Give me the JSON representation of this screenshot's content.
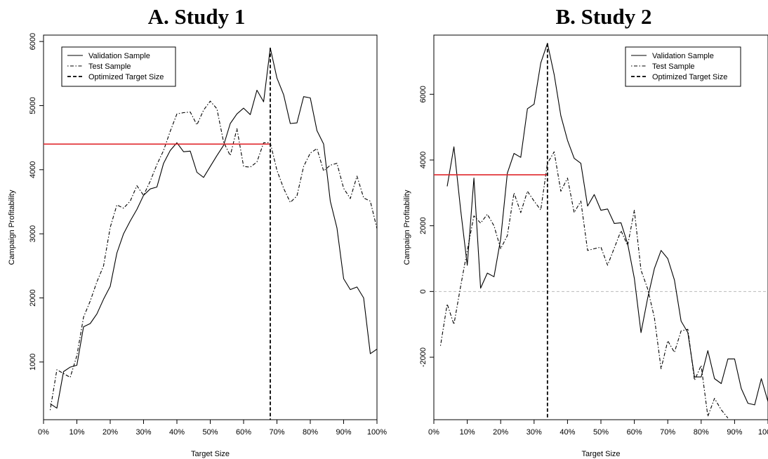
{
  "panels": {
    "a_title": "A. Study 1",
    "b_title": "B. Study 2"
  },
  "chart_data": [
    {
      "type": "line",
      "title": "A. Study 1",
      "xlabel": "Target Size",
      "ylabel": "Campaign Profitability",
      "xlim": [
        0,
        100
      ],
      "ylim": [
        100,
        6100
      ],
      "xticks": [
        0,
        10,
        20,
        30,
        40,
        50,
        60,
        70,
        80,
        90,
        100
      ],
      "xtick_labels": [
        "0%",
        "10%",
        "20%",
        "30%",
        "40%",
        "50%",
        "60%",
        "70%",
        "80%",
        "90%",
        "100%"
      ],
      "yticks": [
        1000,
        2000,
        3000,
        4000,
        5000,
        6000
      ],
      "ytick_labels": [
        "1000",
        "2000",
        "3000",
        "4000",
        "5000",
        "6000"
      ],
      "legend": {
        "position": "top-left",
        "entries": [
          "Validation Sample",
          "Test Sample",
          "Optimized Target Size"
        ]
      },
      "optimized_target_size": 68,
      "reference_level": 4400,
      "series": [
        {
          "name": "Validation Sample",
          "style": "solid",
          "x": [
            2,
            4,
            6,
            8,
            10,
            12,
            14,
            16,
            18,
            20,
            22,
            24,
            26,
            28,
            30,
            32,
            34,
            36,
            38,
            40,
            42,
            44,
            46,
            48,
            50,
            52,
            54,
            56,
            58,
            60,
            62,
            64,
            66,
            68,
            70,
            72,
            74,
            76,
            78,
            80,
            82,
            84,
            86,
            88,
            90,
            92,
            94,
            96,
            98,
            100
          ],
          "y": [
            350,
            280,
            850,
            920,
            950,
            1550,
            1600,
            1750,
            1980,
            2180,
            2700,
            3000,
            3200,
            3380,
            3600,
            3700,
            3730,
            4100,
            4300,
            4420,
            4280,
            4290,
            3960,
            3880,
            4050,
            4220,
            4380,
            4720,
            4870,
            4960,
            4860,
            5240,
            5060,
            5900,
            5430,
            5170,
            4720,
            4730,
            5140,
            5120,
            4610,
            4400,
            3510,
            3090,
            2300,
            2130,
            2170,
            2000,
            1130,
            1200
          ]
        },
        {
          "name": "Test Sample",
          "style": "dotdash",
          "x": [
            2,
            4,
            6,
            8,
            10,
            12,
            14,
            16,
            18,
            20,
            22,
            24,
            26,
            28,
            30,
            32,
            34,
            36,
            38,
            40,
            42,
            44,
            46,
            48,
            50,
            52,
            54,
            56,
            58,
            60,
            62,
            64,
            66,
            68,
            70,
            72,
            74,
            76,
            78,
            80,
            82,
            84,
            86,
            88,
            90,
            92,
            94,
            96,
            98,
            100
          ],
          "y": [
            250,
            880,
            820,
            760,
            1100,
            1700,
            1950,
            2250,
            2500,
            3100,
            3450,
            3400,
            3510,
            3750,
            3600,
            3820,
            4080,
            4300,
            4600,
            4870,
            4890,
            4900,
            4700,
            4930,
            5070,
            4950,
            4430,
            4220,
            4640,
            4050,
            4040,
            4120,
            4420,
            4420,
            3990,
            3710,
            3490,
            3590,
            4050,
            4260,
            4330,
            3980,
            4070,
            4100,
            3710,
            3550,
            3900,
            3560,
            3510,
            3080
          ]
        }
      ]
    },
    {
      "type": "line",
      "title": "B. Study 2",
      "xlabel": "Target Size",
      "ylabel": "Campaign Profitability",
      "xlim": [
        0,
        100
      ],
      "ylim": [
        -3900,
        7800
      ],
      "xticks": [
        0,
        10,
        20,
        30,
        40,
        50,
        60,
        70,
        80,
        90,
        100
      ],
      "xtick_labels": [
        "0%",
        "10%",
        "20%",
        "30%",
        "40%",
        "50%",
        "60%",
        "70%",
        "80%",
        "90%",
        "100%"
      ],
      "yticks": [
        -2000,
        0,
        2000,
        4000,
        6000
      ],
      "ytick_labels": [
        "-2000",
        "0",
        "2000",
        "4000",
        "6000"
      ],
      "legend": {
        "position": "top-right",
        "entries": [
          "Validation Sample",
          "Test Sample",
          "Optimized Target Size"
        ]
      },
      "optimized_target_size": 34,
      "reference_level": 3550,
      "zero_line": 0,
      "series": [
        {
          "name": "Validation Sample",
          "style": "solid",
          "x": [
            4,
            6,
            8,
            10,
            12,
            14,
            16,
            18,
            20,
            22,
            24,
            26,
            28,
            30,
            32,
            34,
            36,
            38,
            40,
            42,
            44,
            46,
            48,
            50,
            52,
            54,
            56,
            58,
            60,
            62,
            64,
            66,
            68,
            70,
            72,
            74,
            76,
            78,
            80,
            82,
            84,
            86,
            88,
            90,
            92,
            94,
            96,
            98,
            100
          ],
          "y": [
            3200,
            4400,
            2500,
            800,
            3450,
            100,
            560,
            450,
            1600,
            3600,
            4200,
            4080,
            5560,
            5700,
            6950,
            7550,
            6600,
            5350,
            4600,
            4050,
            3900,
            2600,
            2950,
            2470,
            2510,
            2070,
            2090,
            1450,
            400,
            -1250,
            -200,
            700,
            1250,
            1000,
            350,
            -900,
            -1250,
            -2600,
            -2600,
            -1800,
            -2650,
            -2800,
            -2050,
            -2050,
            -2950,
            -3400,
            -3450,
            -2650,
            -3350
          ]
        },
        {
          "name": "Test Sample",
          "style": "dotdash",
          "x": [
            2,
            4,
            6,
            8,
            10,
            12,
            14,
            16,
            18,
            20,
            22,
            24,
            26,
            28,
            30,
            32,
            34,
            36,
            38,
            40,
            42,
            44,
            46,
            48,
            50,
            52,
            54,
            56,
            58,
            60,
            62,
            64,
            66,
            68,
            70,
            72,
            74,
            76,
            78,
            80,
            82,
            84,
            86,
            88
          ],
          "y": [
            -1650,
            -380,
            -1000,
            150,
            1250,
            2300,
            2080,
            2350,
            2000,
            1300,
            1700,
            3000,
            2400,
            3050,
            2750,
            2480,
            3900,
            4250,
            3050,
            3450,
            2400,
            2750,
            1250,
            1300,
            1350,
            800,
            1320,
            1850,
            1400,
            2470,
            650,
            80,
            -800,
            -2350,
            -1500,
            -1850,
            -1200,
            -1150,
            -2700,
            -2250,
            -3800,
            -3250,
            -3600,
            -3850
          ]
        }
      ]
    }
  ]
}
